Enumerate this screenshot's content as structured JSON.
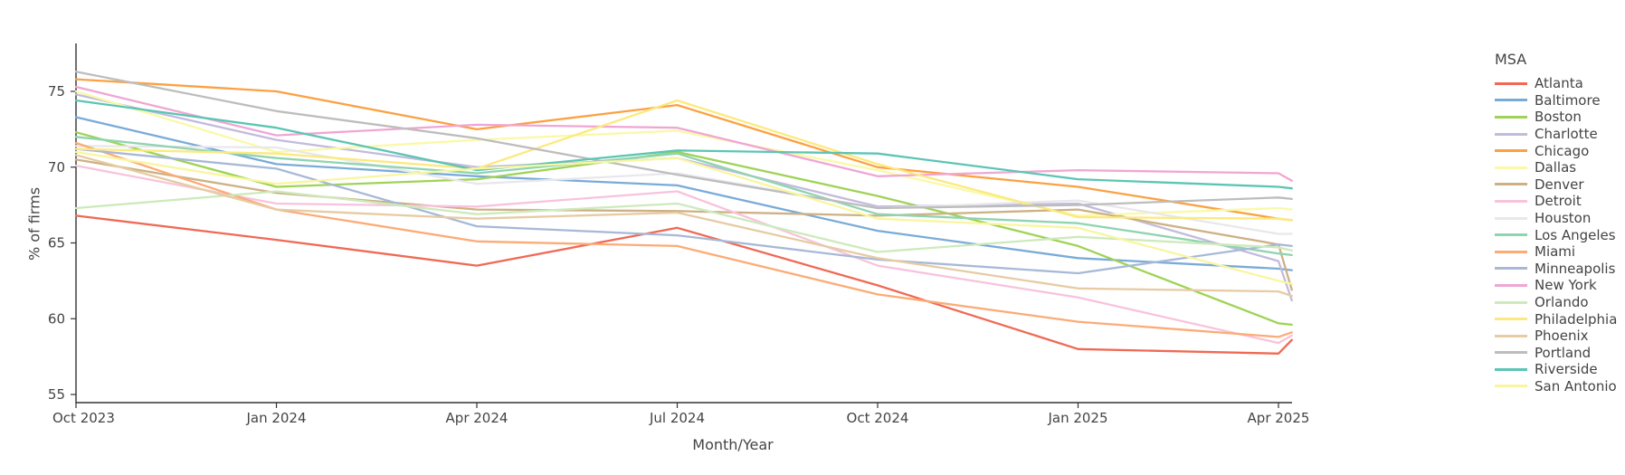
{
  "chart_data": {
    "type": "line",
    "title": "",
    "xlabel": "Month/Year",
    "ylabel": "% of firms",
    "legend_title": "MSA",
    "legend_position": "right",
    "grid": false,
    "ylim": [
      54.5,
      78.2
    ],
    "y_ticks": [
      55,
      60,
      65,
      70,
      75
    ],
    "x_tick_labels": [
      "Oct 2023",
      "Jan 2024",
      "Apr 2024",
      "Jul 2024",
      "Oct 2024",
      "Jan 2025",
      "Apr 2025"
    ],
    "x": [
      "2023-10",
      "2024-01",
      "2024-04",
      "2024-07",
      "2024-10",
      "2025-01",
      "2025-04",
      "2025-05"
    ],
    "x_months": [
      0,
      3,
      6,
      9,
      12,
      15,
      18,
      18.2
    ],
    "series": [
      {
        "name": "Atlanta",
        "color": "#ef6a55",
        "values": [
          66.8,
          65.2,
          63.5,
          66.0,
          62.2,
          58.0,
          57.7,
          58.6
        ]
      },
      {
        "name": "Baltimore",
        "color": "#7aabd8",
        "values": [
          73.3,
          70.2,
          69.4,
          68.8,
          65.8,
          64.0,
          63.3,
          63.2
        ]
      },
      {
        "name": "Boston",
        "color": "#9fd356",
        "values": [
          72.3,
          68.7,
          69.2,
          71.0,
          68.1,
          64.8,
          59.7,
          59.6
        ]
      },
      {
        "name": "Charlotte",
        "color": "#c3bbdd",
        "values": [
          74.8,
          71.8,
          70.0,
          70.6,
          67.4,
          67.6,
          63.8,
          61.2
        ]
      },
      {
        "name": "Chicago",
        "color": "#fba143",
        "values": [
          75.8,
          75.0,
          72.5,
          74.1,
          70.0,
          68.7,
          66.6,
          66.5
        ]
      },
      {
        "name": "Dallas",
        "color": "#f9f9a8",
        "values": [
          75.0,
          71.0,
          71.8,
          72.4,
          69.8,
          66.8,
          67.3,
          67.2
        ]
      },
      {
        "name": "Denver",
        "color": "#cdb184",
        "values": [
          70.5,
          68.3,
          67.2,
          67.1,
          66.8,
          67.2,
          64.9,
          61.9
        ]
      },
      {
        "name": "Detroit",
        "color": "#f8c3dc",
        "values": [
          70.1,
          67.6,
          67.4,
          68.4,
          63.5,
          61.4,
          58.4,
          58.9
        ]
      },
      {
        "name": "Houston",
        "color": "#e9e7ec",
        "values": [
          71.4,
          71.3,
          68.9,
          69.6,
          67.3,
          67.8,
          65.6,
          65.6
        ]
      },
      {
        "name": "Los Angeles",
        "color": "#8fd4b0",
        "values": [
          72.0,
          70.6,
          69.6,
          70.9,
          66.9,
          66.3,
          64.3,
          64.2
        ]
      },
      {
        "name": "Miami",
        "color": "#fcab76",
        "values": [
          71.6,
          67.2,
          65.1,
          64.8,
          61.6,
          59.8,
          58.8,
          59.1
        ]
      },
      {
        "name": "Minneapolis",
        "color": "#a7b9d7",
        "values": [
          71.2,
          69.9,
          66.1,
          65.5,
          63.9,
          63.0,
          64.9,
          64.8
        ]
      },
      {
        "name": "New York",
        "color": "#f0a6d4",
        "values": [
          75.3,
          72.1,
          72.8,
          72.6,
          69.4,
          69.8,
          69.6,
          69.1
        ]
      },
      {
        "name": "Orlando",
        "color": "#cdeabc",
        "values": [
          67.3,
          68.4,
          66.9,
          67.6,
          64.4,
          65.4,
          64.7,
          64.5
        ]
      },
      {
        "name": "Philadelphia",
        "color": "#fce97e",
        "values": [
          71.2,
          70.9,
          69.9,
          74.4,
          70.2,
          66.7,
          66.6,
          66.5
        ]
      },
      {
        "name": "Phoenix",
        "color": "#e6cba3",
        "values": [
          70.8,
          67.2,
          66.6,
          67.0,
          64.0,
          62.0,
          61.8,
          61.5
        ]
      },
      {
        "name": "Portland",
        "color": "#bdbdbd",
        "values": [
          76.3,
          73.7,
          71.9,
          69.5,
          67.3,
          67.5,
          68.0,
          67.9
        ]
      },
      {
        "name": "Riverside",
        "color": "#5cc5b4",
        "values": [
          74.4,
          72.6,
          69.8,
          71.1,
          70.9,
          69.2,
          68.7,
          68.6
        ]
      },
      {
        "name": "San Antonio",
        "color": "#f8f6a0",
        "values": [
          71.0,
          68.9,
          69.9,
          70.6,
          66.6,
          66.0,
          62.5,
          62.3
        ]
      }
    ],
    "axis_color": "#333333",
    "text_color": "#444444",
    "tick_font_size": 15,
    "title_font_size": 16
  }
}
